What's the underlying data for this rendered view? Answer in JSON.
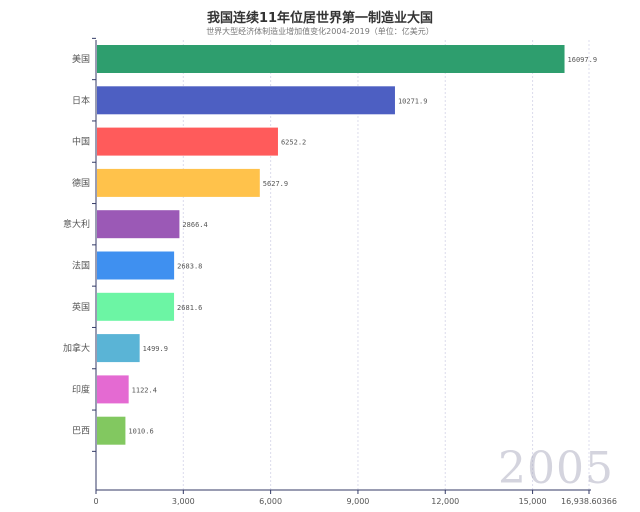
{
  "chart_data": {
    "type": "bar",
    "orientation": "horizontal",
    "title": "我国连续11年位居世界第一制造业大国",
    "subtitle": "世界大型经济体制造业增加值变化2004-2019（单位：亿美元）",
    "year": "2005",
    "categories": [
      "美国",
      "日本",
      "中国",
      "德国",
      "意大利",
      "法国",
      "英国",
      "加拿大",
      "印度",
      "巴西"
    ],
    "values": [
      16097.9,
      10271.9,
      6252.2,
      5627.9,
      2866.4,
      2683.8,
      2681.6,
      1499.9,
      1122.4,
      1010.6
    ],
    "value_labels": [
      "16097.9",
      "10271.9",
      "6252.2",
      "5627.9",
      "2866.4",
      "2683.8",
      "2681.6",
      "1499.9",
      "1122.4",
      "1010.6"
    ],
    "colors": [
      "#2e9e6e",
      "#4d5fc2",
      "#ff5b5b",
      "#ffc24b",
      "#9b59b6",
      "#3f90f0",
      "#6cf5a4",
      "#5ab4d6",
      "#e46ad2",
      "#82c860"
    ],
    "x_ticks": [
      0,
      3000,
      6000,
      9000,
      12000,
      15000
    ],
    "x_tick_labels": [
      "0",
      "3,000",
      "6,000",
      "9,000",
      "12,000",
      "15,000"
    ],
    "x_max_label": "16,938.60366",
    "xlim": [
      0,
      16938.60366
    ],
    "grid": true
  }
}
